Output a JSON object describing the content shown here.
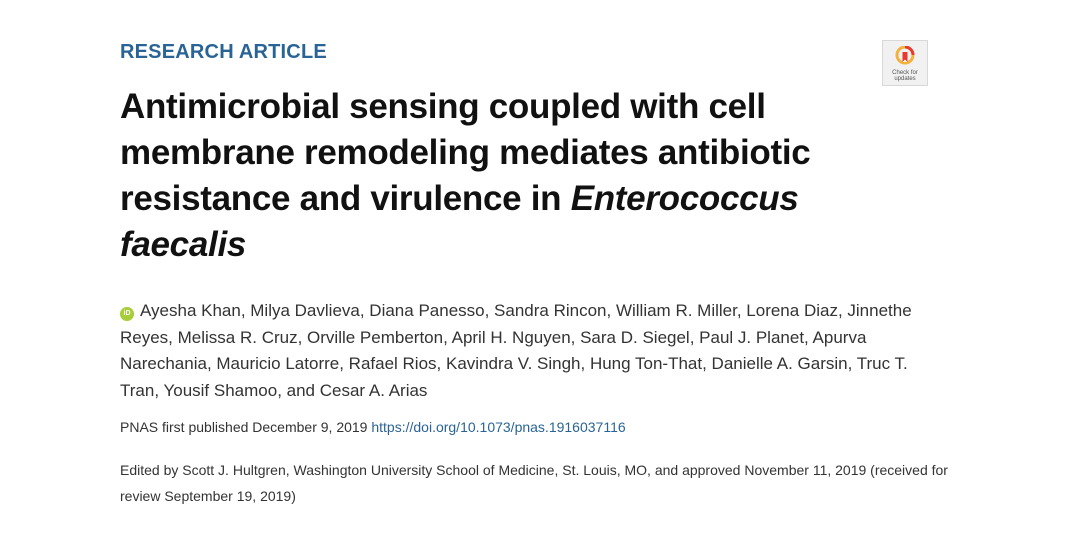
{
  "article": {
    "type_label": "RESEARCH ARTICLE",
    "title_part1": "Antimicrobial sensing coupled with cell membrane remodeling mediates antibiotic resistance and virulence in ",
    "title_italic": "Enterococcus faecalis",
    "authors": "Ayesha Khan, Milya Davlieva, Diana Panesso, Sandra Rincon, William R. Miller, Lorena Diaz, Jinnethe Reyes, Melissa R. Cruz, Orville Pemberton, April H. Nguyen, Sara D. Siegel, Paul J. Planet, Apurva Narechania, Mauricio Latorre, Rafael Rios, Kavindra V. Singh, Hung Ton-That, Danielle A. Garsin, Truc T. Tran, Yousif Shamoo, and Cesar A. Arias",
    "orcid_label": "iD",
    "published_prefix": "PNAS first published December 9, 2019 ",
    "doi_link": "https://doi.org/10.1073/pnas.1916037116",
    "edited_by": "Edited by Scott J. Hultgren, Washington University School of Medicine, St. Louis, MO, and approved November 11, 2019 (received for review September 19, 2019)"
  },
  "check_updates": {
    "label_line1": "Check for",
    "label_line2": "updates",
    "icon": "check-for-updates-icon"
  },
  "colors": {
    "accent": "#2a6496",
    "orcid": "#a6ce39",
    "title": "#111111",
    "body_text": "#333333"
  }
}
